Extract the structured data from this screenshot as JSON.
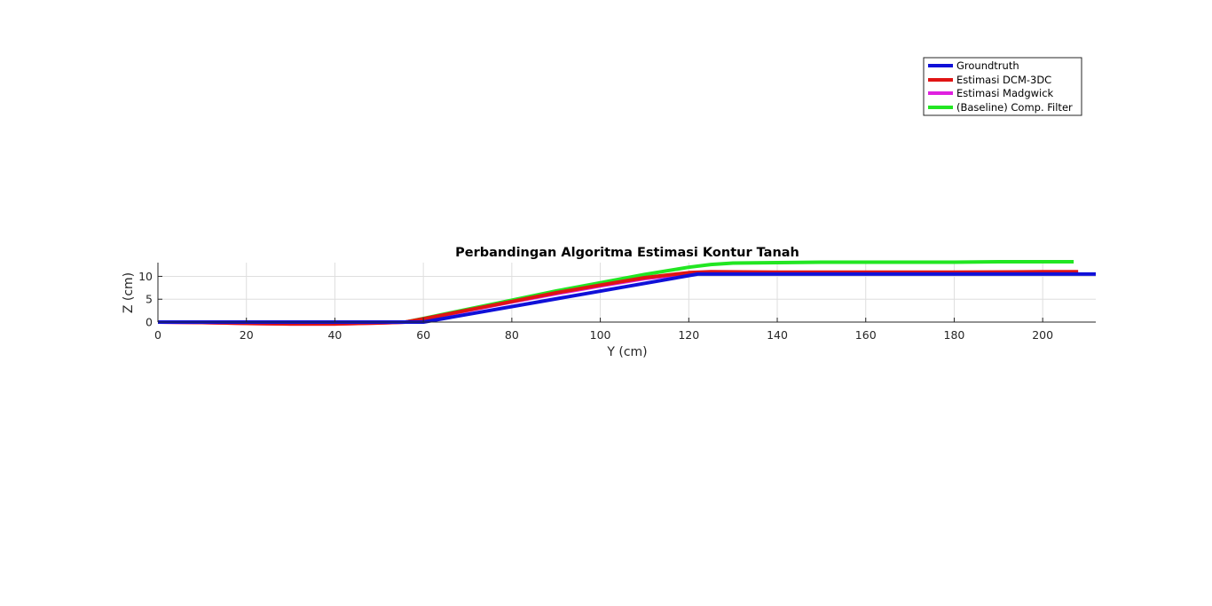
{
  "chart_data": {
    "type": "line",
    "title": "Perbandingan Algoritma Estimasi Kontur Tanah",
    "xlabel": "Y (cm)",
    "ylabel": "Z (cm)",
    "xlim": [
      0,
      212
    ],
    "ylim": [
      0,
      13
    ],
    "xticks": [
      0,
      20,
      40,
      60,
      80,
      100,
      120,
      140,
      160,
      180,
      200
    ],
    "yticks": [
      0,
      5,
      10
    ],
    "grid": true,
    "legend_position": "top-right",
    "series": [
      {
        "name": "(Baseline) Comp. Filter",
        "color": "#22e622",
        "x": [
          0,
          10,
          20,
          30,
          40,
          50,
          56,
          60,
          70,
          80,
          90,
          100,
          110,
          120,
          125,
          130,
          140,
          150,
          160,
          170,
          180,
          190,
          200,
          207
        ],
        "y": [
          0,
          0,
          0,
          -0.3,
          -0.3,
          -0.1,
          0,
          0.8,
          2.8,
          4.8,
          6.8,
          8.6,
          10.4,
          12.0,
          12.6,
          12.9,
          13.0,
          13.1,
          13.1,
          13.1,
          13.1,
          13.2,
          13.2,
          13.2
        ]
      },
      {
        "name": "Estimasi Madgwick",
        "color": "#e020e0",
        "x": [
          0,
          10,
          20,
          30,
          40,
          50,
          56,
          60,
          70,
          80,
          90,
          100,
          110,
          120,
          125,
          140,
          160,
          180,
          200,
          208
        ],
        "y": [
          0,
          -0.1,
          -0.3,
          -0.4,
          -0.4,
          -0.2,
          0,
          0.6,
          2.5,
          4.4,
          6.2,
          7.9,
          9.5,
          10.6,
          10.8,
          10.8,
          10.8,
          10.8,
          10.9,
          10.9
        ]
      },
      {
        "name": "Estimasi DCM-3DC",
        "color": "#e01414",
        "x": [
          0,
          10,
          20,
          30,
          40,
          50,
          56,
          60,
          70,
          80,
          90,
          100,
          110,
          120,
          125,
          140,
          160,
          180,
          200,
          208
        ],
        "y": [
          0,
          -0.1,
          -0.3,
          -0.4,
          -0.4,
          -0.2,
          0,
          0.7,
          2.6,
          4.5,
          6.4,
          8.1,
          9.7,
          10.8,
          11.0,
          10.9,
          10.9,
          10.9,
          11.0,
          11.0
        ]
      },
      {
        "name": "Groundtruth",
        "color": "#1010d8",
        "x": [
          0,
          56,
          60,
          122,
          212
        ],
        "y": [
          0,
          0,
          0,
          10.5,
          10.5
        ]
      }
    ]
  }
}
